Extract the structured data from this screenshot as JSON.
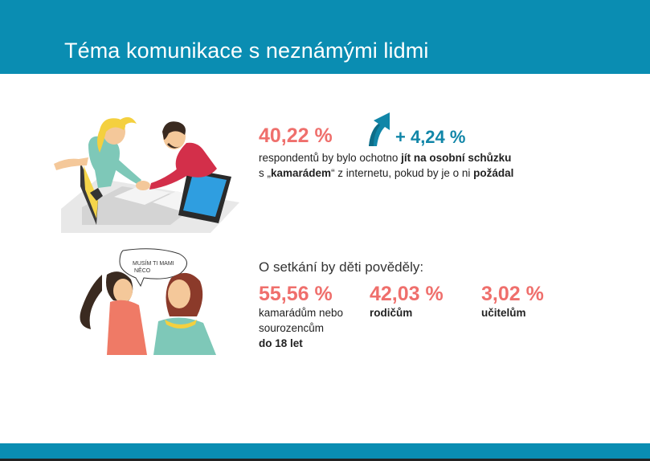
{
  "header": {
    "title": "Téma komunikace s neznámými lidmi"
  },
  "section1": {
    "percent": "40,22 %",
    "change": "+ 4,24 %",
    "line1_pre": "respondentů by bylo ochotno ",
    "line1_bold": "jít na osobní schůzku",
    "line2_pre": "s „",
    "line2_bold1": "kamarádem",
    "line2_mid": "“ z internetu, pokud by je o ni ",
    "line2_bold2": "požádal"
  },
  "section2": {
    "lead": "O setkání by děti pověděly:",
    "speech": [
      "MUSÍM TI MAMI",
      "NĚCO"
    ],
    "items": [
      {
        "percent": "55,56 %",
        "label_lines": [
          "kamarádům nebo",
          "sourozencům"
        ],
        "label_bold": "do 18 let"
      },
      {
        "percent": "42,03 %",
        "label_bold": "rodičům"
      },
      {
        "percent": "3,02 %",
        "label_bold": "učitelům"
      }
    ]
  },
  "colors": {
    "accent": "#0a8db2",
    "highlight": "#ef6f6c",
    "arrow": "#1186a8"
  },
  "icons": [
    "trend-up-arrow-icon",
    "handshake-laptop-illustration",
    "girls-talking-illustration"
  ]
}
